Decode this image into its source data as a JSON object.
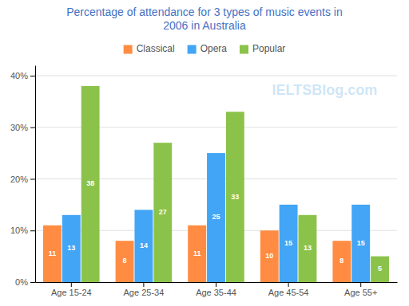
{
  "chart_data": {
    "type": "bar",
    "title": "Percentage of attendance for 3 types of music events in\n2006 in Australia",
    "categories": [
      "Age 15-24",
      "Age 25-34",
      "Age 35-44",
      "Age 45-54",
      "Age 55+"
    ],
    "series": [
      {
        "name": "Classical",
        "color": "#FF8C42",
        "values": [
          11,
          8,
          11,
          10,
          8
        ]
      },
      {
        "name": "Opera",
        "color": "#42A5F5",
        "values": [
          13,
          14,
          25,
          15,
          15
        ]
      },
      {
        "name": "Popular",
        "color": "#8BC34A",
        "values": [
          38,
          27,
          33,
          13,
          5
        ]
      }
    ],
    "ylim": [
      0,
      42
    ],
    "yticks": [
      {
        "value": 0,
        "label": "0%"
      },
      {
        "value": 10,
        "label": "10%"
      },
      {
        "value": 20,
        "label": "20%"
      },
      {
        "value": 30,
        "label": "30%"
      },
      {
        "value": 40,
        "label": "40%"
      }
    ],
    "grid": true,
    "legend": "top",
    "data_labels": true,
    "annotations": [
      "IELTSBlog.com"
    ]
  }
}
